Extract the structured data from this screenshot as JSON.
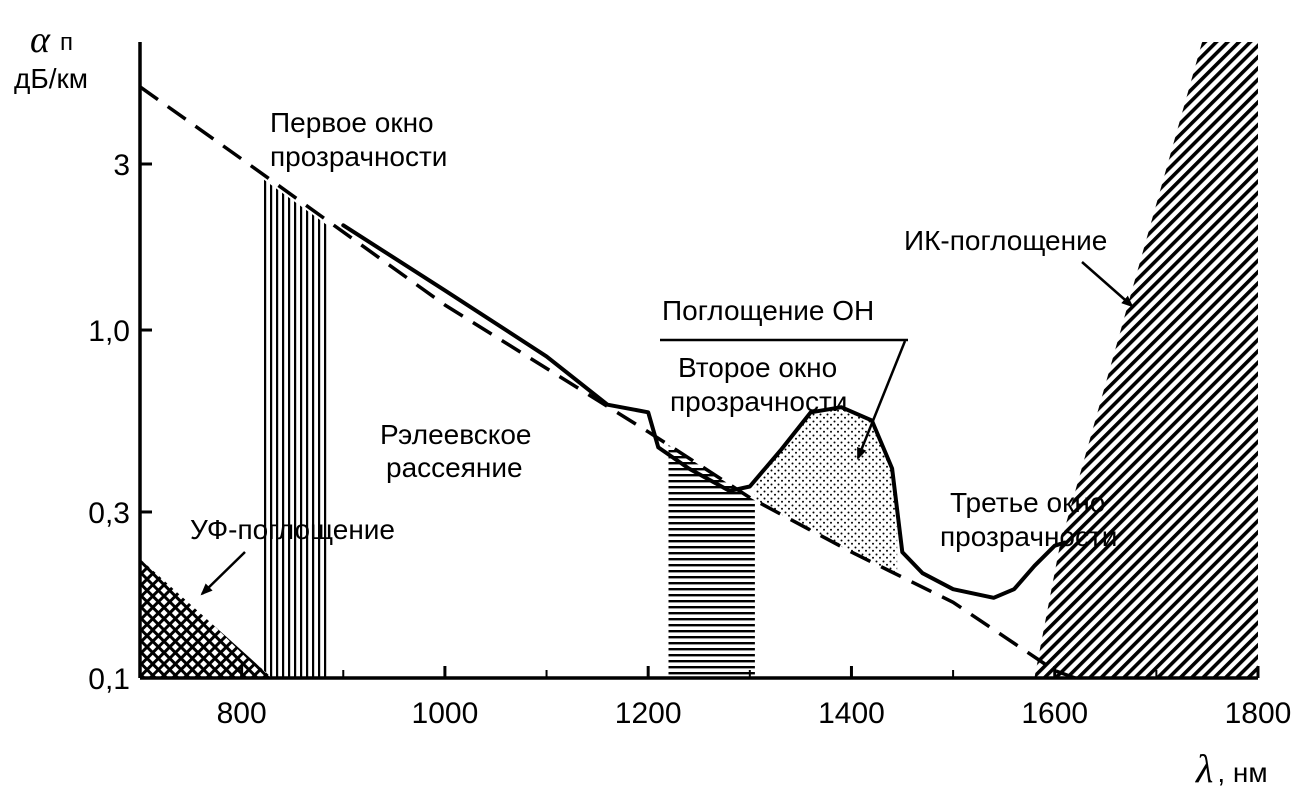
{
  "chart_data": {
    "type": "line",
    "ylabel_symbol": "α",
    "ylabel_sub": "п",
    "ylabel_unit": "дБ/км",
    "xlabel_symbol": "λ",
    "xlabel_unit": ", нм",
    "xlim": [
      700,
      1800
    ],
    "ylim": [
      0.1,
      6.0
    ],
    "yscale": "log",
    "x_ticks": [
      800,
      1000,
      1200,
      1400,
      1600,
      1800
    ],
    "x_tick_labels": [
      "800",
      "1000",
      "1200",
      "1400",
      "1600",
      "1800"
    ],
    "y_ticks": [
      0.1,
      0.3,
      1.0,
      3.0
    ],
    "y_tick_labels": [
      "0,1",
      "0,3",
      "1,0",
      "3"
    ],
    "series": [
      {
        "style": "solid",
        "x": [
          900,
          1000,
          1100,
          1160,
          1200,
          1210,
          1240,
          1280,
          1300,
          1330,
          1360,
          1390,
          1420,
          1440,
          1450,
          1470,
          1500,
          1540,
          1560,
          1580,
          1600,
          1610
        ],
        "y": [
          2.0,
          1.3,
          0.84,
          0.61,
          0.58,
          0.46,
          0.4,
          0.345,
          0.355,
          0.45,
          0.58,
          0.6,
          0.55,
          0.4,
          0.23,
          0.2,
          0.18,
          0.17,
          0.18,
          0.21,
          0.24,
          0.245
        ]
      },
      {
        "style": "dashed",
        "x": [
          700,
          800,
          1000,
          1200,
          1300,
          1400,
          1500,
          1600,
          1620
        ],
        "y": [
          5.0,
          3.1,
          1.18,
          0.51,
          0.33,
          0.23,
          0.165,
          0.105,
          0.1
        ]
      }
    ],
    "bands": [
      {
        "pattern": "vertical-lines",
        "x0": 820,
        "x1": 885
      },
      {
        "pattern": "horizontal-lines",
        "x0": 1220,
        "x1": 1305
      },
      {
        "pattern": "dots",
        "x0": 1305,
        "x1": 1445
      },
      {
        "pattern": "diagonal",
        "x0": 1580,
        "x1": 1800
      },
      {
        "pattern": "crosshatch",
        "x0": 700,
        "x1": 830
      }
    ],
    "annotations": [
      {
        "id": "first-window",
        "lines": [
          "Первое окно",
          "прозрачности"
        ]
      },
      {
        "id": "rayleigh",
        "lines": [
          "Рэлеевское",
          "рассеяние"
        ]
      },
      {
        "id": "uv",
        "lines": [
          "УФ-поглощение"
        ]
      },
      {
        "id": "oh",
        "lines": [
          "Поглощение ОН"
        ]
      },
      {
        "id": "second-window",
        "lines": [
          "Второе окно",
          "прозрачности"
        ]
      },
      {
        "id": "third-window",
        "lines": [
          "Третье окно",
          "прозрачности"
        ]
      },
      {
        "id": "ir",
        "lines": [
          "ИК-поглощение"
        ]
      }
    ]
  }
}
